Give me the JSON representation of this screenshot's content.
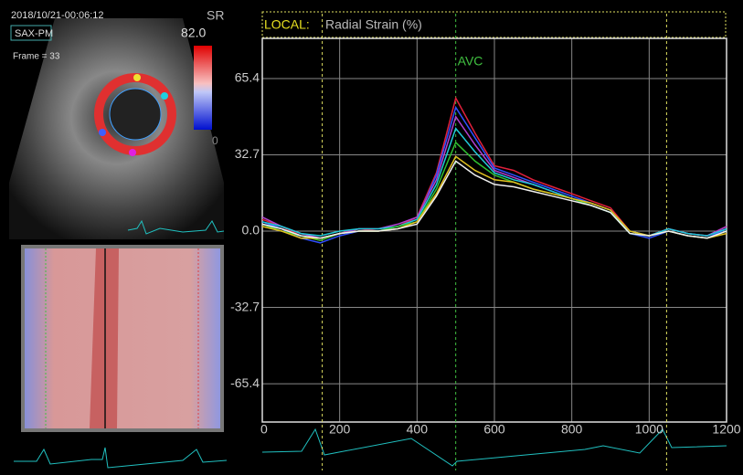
{
  "header": {
    "timestamp": "2018/10/21-00:06:12",
    "view": "SAX-PM",
    "frame": "Frame = 33",
    "scale_name": "SR",
    "scale_max": "82.0",
    "scale_min": "0"
  },
  "chart_data": {
    "type": "line",
    "title_label": "LOCAL:",
    "title": "Radial Strain (%)",
    "x": [
      0,
      50,
      100,
      150,
      200,
      250,
      300,
      350,
      400,
      450,
      500,
      550,
      600,
      650,
      700,
      750,
      800,
      850,
      900,
      950,
      1000,
      1050,
      1100,
      1150,
      1200
    ],
    "series": [
      {
        "color": "#e0203c",
        "values": [
          5,
          2,
          -2,
          -4,
          -1,
          1,
          0,
          2,
          6,
          25,
          57,
          42,
          28,
          26,
          22,
          19,
          16,
          13,
          10,
          0,
          -2,
          1,
          -1,
          -2,
          2
        ]
      },
      {
        "color": "#3050ff",
        "values": [
          4,
          1,
          -3,
          -5,
          -2,
          0,
          0,
          2,
          5,
          24,
          53,
          40,
          27,
          24,
          21,
          18,
          15,
          12,
          9,
          -1,
          -3,
          0,
          -2,
          -3,
          1
        ]
      },
      {
        "color": "#b040d0",
        "values": [
          6,
          2,
          -1,
          -3,
          -1,
          1,
          1,
          3,
          6,
          22,
          49,
          37,
          26,
          23,
          20,
          17,
          14,
          11,
          8,
          0,
          -2,
          1,
          -1,
          -2,
          2
        ]
      },
      {
        "color": "#20c8d8",
        "values": [
          4,
          2,
          -1,
          -2,
          0,
          1,
          1,
          2,
          5,
          20,
          44,
          34,
          25,
          22,
          20,
          17,
          14,
          11,
          8,
          0,
          -2,
          1,
          -1,
          -2,
          1
        ]
      },
      {
        "color": "#30c030",
        "values": [
          3,
          0,
          -2,
          -4,
          -1,
          0,
          0,
          2,
          4,
          18,
          38,
          30,
          24,
          21,
          18,
          16,
          14,
          11,
          8,
          -1,
          -2,
          0,
          -2,
          -3,
          0
        ]
      },
      {
        "color": "#e0c020",
        "values": [
          2,
          0,
          -3,
          -3,
          -1,
          0,
          0,
          1,
          4,
          16,
          32,
          26,
          22,
          21,
          18,
          16,
          14,
          12,
          9,
          0,
          -2,
          0,
          -2,
          -3,
          -1
        ]
      },
      {
        "color": "#f0f0f0",
        "values": [
          3,
          1,
          -2,
          -3,
          -1,
          0,
          0,
          1,
          3,
          15,
          30,
          24,
          20,
          19,
          17,
          15,
          13,
          11,
          8,
          -1,
          -2,
          0,
          -2,
          -3,
          0
        ]
      }
    ],
    "xlim": [
      0,
      1200
    ],
    "xticks": [
      0,
      200,
      400,
      600,
      800,
      1000,
      1200
    ],
    "ylim": [
      -81.8,
      82.6
    ],
    "yticks": [
      65.4,
      32.7,
      {
        "value": 0,
        "label": "0.0"
      },
      -32.7,
      -65.4
    ],
    "grid": true,
    "markers": [
      {
        "x": 155,
        "color": "#e0e060"
      },
      {
        "x": 500,
        "color": "#40c040",
        "label": "AVC"
      },
      {
        "x": 1045,
        "color": "#e0e060"
      }
    ]
  }
}
